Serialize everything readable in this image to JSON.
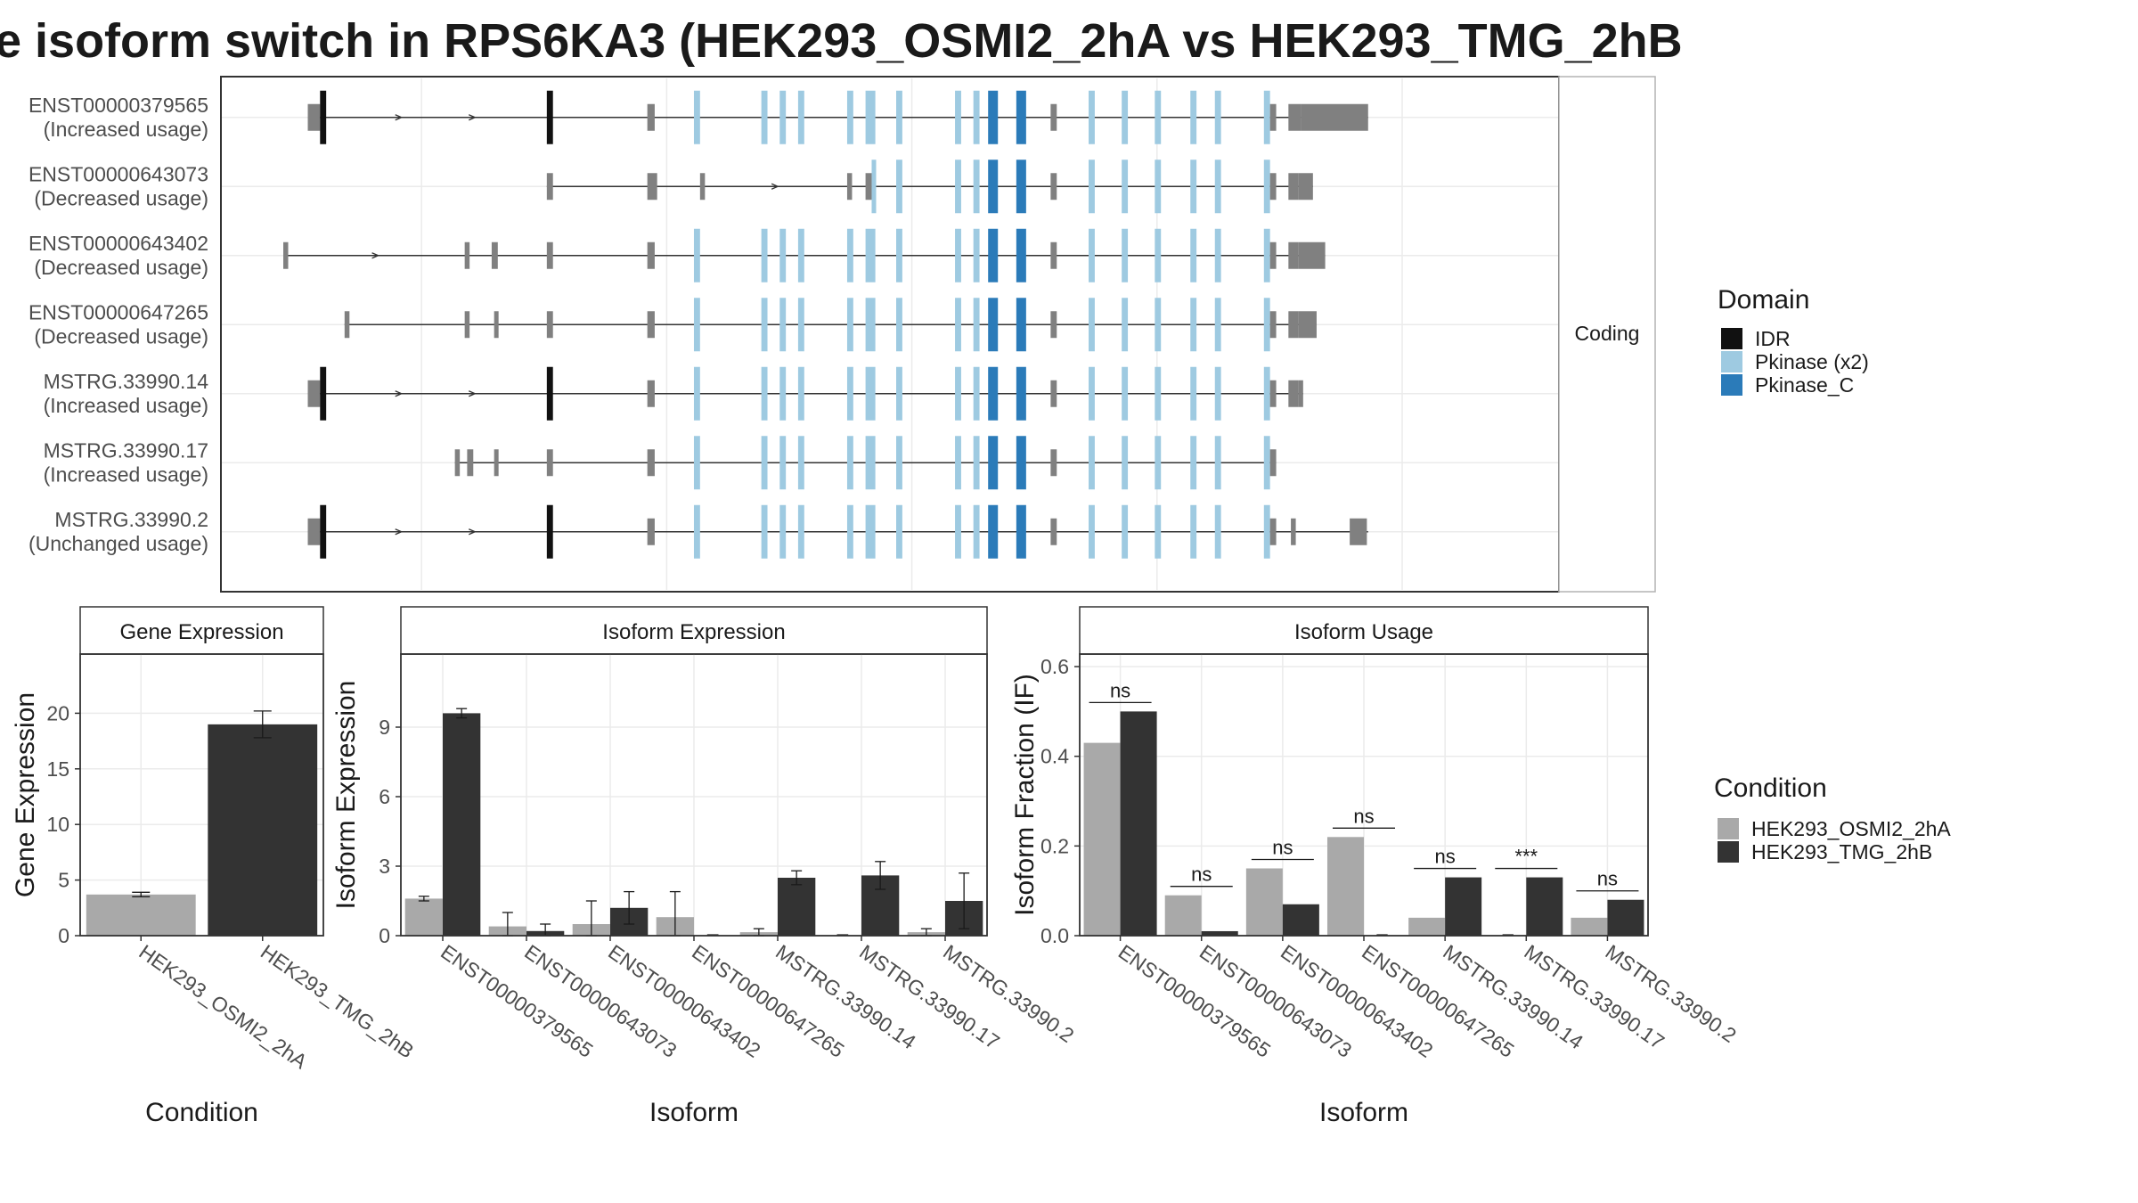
{
  "title": "e isoform switch in RPS6KA3 (HEK293_OSMI2_2hA vs HEK293_TMG_2hB",
  "colors": {
    "idr": "#111111",
    "pkinase": "#9ecae1",
    "pkinase_c": "#2b7bb9",
    "noncoding_exon": "#808080",
    "cond_a": "#a9a9a9",
    "cond_b": "#333333",
    "panel_border": "#333333",
    "grid": "#ebebeb"
  },
  "structure": {
    "facet_label": "Coding",
    "transcripts": [
      {
        "id": "ENST00000379565",
        "status": "(Increased usage)",
        "start": 0.02,
        "end": 0.885,
        "exons": [
          [
            0.02,
            0.03,
            "nc"
          ],
          [
            0.03,
            0.035,
            "idr"
          ],
          [
            0.215,
            0.22,
            "idr"
          ],
          [
            0.297,
            0.303,
            "nc"
          ],
          [
            0.335,
            0.34,
            "pk"
          ],
          [
            0.39,
            0.395,
            "pk"
          ],
          [
            0.405,
            0.41,
            "pk"
          ],
          [
            0.42,
            0.425,
            "pk"
          ],
          [
            0.46,
            0.465,
            "pk"
          ],
          [
            0.475,
            0.483,
            "pk"
          ],
          [
            0.5,
            0.505,
            "pk"
          ],
          [
            0.548,
            0.553,
            "pk"
          ],
          [
            0.563,
            0.568,
            "pk"
          ],
          [
            0.575,
            0.583,
            "pkc"
          ],
          [
            0.598,
            0.606,
            "pkc"
          ],
          [
            0.626,
            0.631,
            "nc"
          ],
          [
            0.657,
            0.662,
            "pk"
          ],
          [
            0.684,
            0.689,
            "pk"
          ],
          [
            0.711,
            0.716,
            "pk"
          ],
          [
            0.74,
            0.745,
            "pk"
          ],
          [
            0.76,
            0.765,
            "pk"
          ],
          [
            0.8,
            0.805,
            "pk"
          ],
          [
            0.805,
            0.81,
            "nc"
          ],
          [
            0.82,
            0.83,
            "nc"
          ],
          [
            0.83,
            0.885,
            "nc_tall"
          ]
        ]
      },
      {
        "id": "ENST00000643073",
        "status": "(Decreased usage)",
        "start": 0.215,
        "end": 0.84,
        "exons": [
          [
            0.215,
            0.22,
            "nc"
          ],
          [
            0.297,
            0.305,
            "nc"
          ],
          [
            0.34,
            0.344,
            "nc"
          ],
          [
            0.46,
            0.464,
            "nc"
          ],
          [
            0.475,
            0.48,
            "nc"
          ],
          [
            0.48,
            0.483,
            "pk"
          ],
          [
            0.5,
            0.505,
            "pk"
          ],
          [
            0.548,
            0.553,
            "pk"
          ],
          [
            0.563,
            0.568,
            "pk"
          ],
          [
            0.575,
            0.583,
            "pkc"
          ],
          [
            0.598,
            0.606,
            "pkc"
          ],
          [
            0.626,
            0.631,
            "nc"
          ],
          [
            0.657,
            0.662,
            "pk"
          ],
          [
            0.684,
            0.689,
            "pk"
          ],
          [
            0.711,
            0.716,
            "pk"
          ],
          [
            0.74,
            0.745,
            "pk"
          ],
          [
            0.76,
            0.765,
            "pk"
          ],
          [
            0.8,
            0.805,
            "pk"
          ],
          [
            0.805,
            0.81,
            "nc"
          ],
          [
            0.82,
            0.828,
            "nc"
          ],
          [
            0.828,
            0.84,
            "nc_tall"
          ]
        ]
      },
      {
        "id": "ENST00000643402",
        "status": "(Decreased usage)",
        "start": 0.0,
        "end": 0.85,
        "exons": [
          [
            0.0,
            0.004,
            "nc"
          ],
          [
            0.148,
            0.152,
            "nc"
          ],
          [
            0.17,
            0.175,
            "nc"
          ],
          [
            0.215,
            0.22,
            "nc"
          ],
          [
            0.297,
            0.303,
            "nc"
          ],
          [
            0.335,
            0.34,
            "pk"
          ],
          [
            0.39,
            0.395,
            "pk"
          ],
          [
            0.405,
            0.41,
            "pk"
          ],
          [
            0.42,
            0.425,
            "pk"
          ],
          [
            0.46,
            0.465,
            "pk"
          ],
          [
            0.475,
            0.483,
            "pk"
          ],
          [
            0.5,
            0.505,
            "pk"
          ],
          [
            0.548,
            0.553,
            "pk"
          ],
          [
            0.563,
            0.568,
            "pk"
          ],
          [
            0.575,
            0.583,
            "pkc"
          ],
          [
            0.598,
            0.606,
            "pkc"
          ],
          [
            0.626,
            0.631,
            "nc"
          ],
          [
            0.657,
            0.662,
            "pk"
          ],
          [
            0.684,
            0.689,
            "pk"
          ],
          [
            0.711,
            0.716,
            "pk"
          ],
          [
            0.74,
            0.745,
            "pk"
          ],
          [
            0.76,
            0.765,
            "pk"
          ],
          [
            0.8,
            0.805,
            "pk"
          ],
          [
            0.805,
            0.81,
            "nc"
          ],
          [
            0.82,
            0.828,
            "nc"
          ],
          [
            0.828,
            0.85,
            "nc_tall"
          ]
        ]
      },
      {
        "id": "ENST00000647265",
        "status": "(Decreased usage)",
        "start": 0.05,
        "end": 0.843,
        "exons": [
          [
            0.05,
            0.054,
            "nc"
          ],
          [
            0.148,
            0.152,
            "nc"
          ],
          [
            0.172,
            0.175,
            "nc"
          ],
          [
            0.215,
            0.22,
            "nc"
          ],
          [
            0.297,
            0.303,
            "nc"
          ],
          [
            0.335,
            0.34,
            "pk"
          ],
          [
            0.39,
            0.395,
            "pk"
          ],
          [
            0.405,
            0.41,
            "pk"
          ],
          [
            0.42,
            0.425,
            "pk"
          ],
          [
            0.46,
            0.465,
            "pk"
          ],
          [
            0.475,
            0.483,
            "pk"
          ],
          [
            0.5,
            0.505,
            "pk"
          ],
          [
            0.548,
            0.553,
            "pk"
          ],
          [
            0.563,
            0.568,
            "pk"
          ],
          [
            0.575,
            0.583,
            "pkc"
          ],
          [
            0.598,
            0.606,
            "pkc"
          ],
          [
            0.626,
            0.631,
            "nc"
          ],
          [
            0.657,
            0.662,
            "pk"
          ],
          [
            0.684,
            0.689,
            "pk"
          ],
          [
            0.711,
            0.716,
            "pk"
          ],
          [
            0.74,
            0.745,
            "pk"
          ],
          [
            0.76,
            0.765,
            "pk"
          ],
          [
            0.8,
            0.805,
            "pk"
          ],
          [
            0.805,
            0.81,
            "nc"
          ],
          [
            0.82,
            0.828,
            "nc"
          ],
          [
            0.828,
            0.843,
            "nc_tall"
          ]
        ]
      },
      {
        "id": "MSTRG.33990.14",
        "status": "(Increased usage)",
        "start": 0.02,
        "end": 0.832,
        "exons": [
          [
            0.02,
            0.03,
            "nc"
          ],
          [
            0.03,
            0.035,
            "idr"
          ],
          [
            0.215,
            0.22,
            "idr"
          ],
          [
            0.297,
            0.303,
            "nc"
          ],
          [
            0.335,
            0.34,
            "pk"
          ],
          [
            0.39,
            0.395,
            "pk"
          ],
          [
            0.405,
            0.41,
            "pk"
          ],
          [
            0.42,
            0.425,
            "pk"
          ],
          [
            0.46,
            0.465,
            "pk"
          ],
          [
            0.475,
            0.483,
            "pk"
          ],
          [
            0.5,
            0.505,
            "pk"
          ],
          [
            0.548,
            0.553,
            "pk"
          ],
          [
            0.563,
            0.568,
            "pk"
          ],
          [
            0.575,
            0.583,
            "pkc"
          ],
          [
            0.598,
            0.606,
            "pkc"
          ],
          [
            0.626,
            0.631,
            "nc"
          ],
          [
            0.657,
            0.662,
            "pk"
          ],
          [
            0.684,
            0.689,
            "pk"
          ],
          [
            0.711,
            0.716,
            "pk"
          ],
          [
            0.74,
            0.745,
            "pk"
          ],
          [
            0.76,
            0.765,
            "pk"
          ],
          [
            0.8,
            0.805,
            "pk"
          ],
          [
            0.805,
            0.81,
            "nc"
          ],
          [
            0.82,
            0.828,
            "nc"
          ],
          [
            0.828,
            0.832,
            "nc_tall"
          ]
        ]
      },
      {
        "id": "MSTRG.33990.17",
        "status": "(Increased usage)",
        "start": 0.14,
        "end": 0.81,
        "exons": [
          [
            0.14,
            0.144,
            "nc"
          ],
          [
            0.15,
            0.155,
            "nc"
          ],
          [
            0.172,
            0.175,
            "nc"
          ],
          [
            0.215,
            0.22,
            "nc"
          ],
          [
            0.297,
            0.303,
            "nc"
          ],
          [
            0.335,
            0.34,
            "pk"
          ],
          [
            0.39,
            0.395,
            "pk"
          ],
          [
            0.405,
            0.41,
            "pk"
          ],
          [
            0.42,
            0.425,
            "pk"
          ],
          [
            0.46,
            0.465,
            "pk"
          ],
          [
            0.475,
            0.483,
            "pk"
          ],
          [
            0.5,
            0.505,
            "pk"
          ],
          [
            0.548,
            0.553,
            "pk"
          ],
          [
            0.563,
            0.568,
            "pk"
          ],
          [
            0.575,
            0.583,
            "pkc"
          ],
          [
            0.598,
            0.606,
            "pkc"
          ],
          [
            0.626,
            0.631,
            "nc"
          ],
          [
            0.657,
            0.662,
            "pk"
          ],
          [
            0.684,
            0.689,
            "pk"
          ],
          [
            0.711,
            0.716,
            "pk"
          ],
          [
            0.74,
            0.745,
            "pk"
          ],
          [
            0.76,
            0.765,
            "pk"
          ],
          [
            0.8,
            0.805,
            "pk"
          ],
          [
            0.805,
            0.81,
            "nc"
          ]
        ]
      },
      {
        "id": "MSTRG.33990.2",
        "status": "(Unchanged usage)",
        "start": 0.02,
        "end": 0.885,
        "exons": [
          [
            0.02,
            0.03,
            "nc"
          ],
          [
            0.03,
            0.035,
            "idr"
          ],
          [
            0.215,
            0.22,
            "idr"
          ],
          [
            0.297,
            0.303,
            "nc"
          ],
          [
            0.335,
            0.34,
            "pk"
          ],
          [
            0.39,
            0.395,
            "pk"
          ],
          [
            0.405,
            0.41,
            "pk"
          ],
          [
            0.42,
            0.425,
            "pk"
          ],
          [
            0.46,
            0.465,
            "pk"
          ],
          [
            0.475,
            0.483,
            "pk"
          ],
          [
            0.5,
            0.505,
            "pk"
          ],
          [
            0.548,
            0.553,
            "pk"
          ],
          [
            0.563,
            0.568,
            "pk"
          ],
          [
            0.575,
            0.583,
            "pkc"
          ],
          [
            0.598,
            0.606,
            "pkc"
          ],
          [
            0.626,
            0.631,
            "nc"
          ],
          [
            0.657,
            0.662,
            "pk"
          ],
          [
            0.684,
            0.689,
            "pk"
          ],
          [
            0.711,
            0.716,
            "pk"
          ],
          [
            0.74,
            0.745,
            "pk"
          ],
          [
            0.76,
            0.765,
            "pk"
          ],
          [
            0.8,
            0.805,
            "pk"
          ],
          [
            0.805,
            0.81,
            "nc"
          ],
          [
            0.822,
            0.826,
            "nc"
          ],
          [
            0.87,
            0.884,
            "nc_tall"
          ]
        ]
      }
    ]
  },
  "legend_domain": {
    "title": "Domain",
    "items": [
      {
        "label": "IDR",
        "color": "#111111"
      },
      {
        "label": "Pkinase (x2)",
        "color": "#9ecae1"
      },
      {
        "label": "Pkinase_C",
        "color": "#2b7bb9"
      }
    ]
  },
  "legend_condition": {
    "title": "Condition",
    "items": [
      {
        "label": "HEK293_OSMI2_2hA",
        "color": "#a9a9a9"
      },
      {
        "label": "HEK293_TMG_2hB",
        "color": "#333333"
      }
    ]
  },
  "chart_data": [
    {
      "type": "bar",
      "title": "Gene Expression",
      "xlabel": "Condition",
      "ylabel": "Gene Expression",
      "categories": [
        "HEK293_OSMI2_2hA",
        "HEK293_TMG_2hB"
      ],
      "values": [
        3.7,
        19.0
      ],
      "errors": [
        0.2,
        1.2
      ],
      "ylim": [
        0,
        25
      ],
      "yticks": [
        0,
        5,
        10,
        15,
        20
      ],
      "grid": true
    },
    {
      "type": "bar",
      "title": "Isoform Expression",
      "xlabel": "Isoform",
      "ylabel": "Isoform Expression",
      "categories": [
        "ENST00000379565",
        "ENST00000643073",
        "ENST00000643402",
        "ENST00000647265",
        "MSTRG.33990.14",
        "MSTRG.33990.17",
        "MSTRG.33990.2"
      ],
      "series": [
        {
          "name": "HEK293_OSMI2_2hA",
          "values": [
            1.6,
            0.4,
            0.5,
            0.8,
            0.15,
            0.0,
            0.15
          ],
          "errors": [
            0.1,
            0.6,
            1.0,
            1.1,
            0.15,
            0.0,
            0.15
          ]
        },
        {
          "name": "HEK293_TMG_2hB",
          "values": [
            9.6,
            0.2,
            1.2,
            0.0,
            2.5,
            2.6,
            1.5
          ],
          "errors": [
            0.2,
            0.3,
            0.7,
            0.0,
            0.3,
            0.6,
            1.2
          ]
        }
      ],
      "ylim": [
        0,
        12
      ],
      "yticks": [
        0,
        3,
        6,
        9
      ],
      "grid": true
    },
    {
      "type": "bar",
      "title": "Isoform Usage",
      "xlabel": "Isoform",
      "ylabel": "Isoform Fraction (IF)",
      "categories": [
        "ENST00000379565",
        "ENST00000643073",
        "ENST00000643402",
        "ENST00000647265",
        "MSTRG.33990.14",
        "MSTRG.33990.17",
        "MSTRG.33990.2"
      ],
      "series": [
        {
          "name": "HEK293_OSMI2_2hA",
          "values": [
            0.43,
            0.09,
            0.15,
            0.22,
            0.04,
            0.0,
            0.04
          ]
        },
        {
          "name": "HEK293_TMG_2hB",
          "values": [
            0.5,
            0.01,
            0.07,
            0.0,
            0.13,
            0.13,
            0.08
          ]
        }
      ],
      "significance": [
        "ns",
        "ns",
        "ns",
        "ns",
        "ns",
        "***",
        "ns"
      ],
      "ylim": [
        0,
        0.62
      ],
      "yticks": [
        "0.0",
        "0.2",
        "0.4",
        "0.6"
      ],
      "grid": true
    }
  ]
}
